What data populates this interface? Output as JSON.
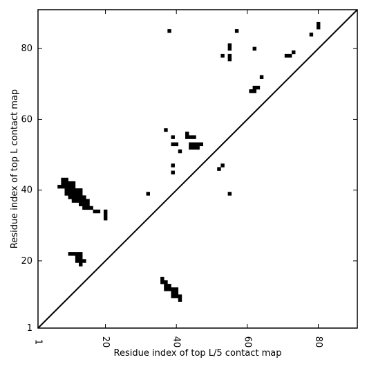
{
  "chart_data": {
    "type": "heatmap",
    "title": "",
    "xlabel": "Residue index of top L/5 contact map",
    "ylabel": "Residue index of top L contact map",
    "xlim": [
      1,
      91
    ],
    "ylim": [
      1,
      91
    ],
    "x_ticks": [
      1,
      20,
      40,
      60,
      80
    ],
    "y_ticks": [
      1,
      20,
      40,
      60,
      80
    ],
    "diagonal": {
      "from": [
        1,
        1
      ],
      "to": [
        91,
        91
      ]
    },
    "grid": false,
    "cell_color": "#000000",
    "cells": [
      [
        8,
        43
      ],
      [
        9,
        43
      ],
      [
        8,
        42
      ],
      [
        9,
        42
      ],
      [
        10,
        42
      ],
      [
        11,
        42
      ],
      [
        7,
        41
      ],
      [
        8,
        41
      ],
      [
        9,
        41
      ],
      [
        10,
        41
      ],
      [
        11,
        41
      ],
      [
        9,
        40
      ],
      [
        10,
        40
      ],
      [
        11,
        40
      ],
      [
        12,
        40
      ],
      [
        13,
        40
      ],
      [
        9,
        39
      ],
      [
        10,
        39
      ],
      [
        11,
        39
      ],
      [
        12,
        39
      ],
      [
        13,
        39
      ],
      [
        10,
        38
      ],
      [
        11,
        38
      ],
      [
        12,
        38
      ],
      [
        13,
        38
      ],
      [
        14,
        38
      ],
      [
        11,
        37
      ],
      [
        12,
        37
      ],
      [
        13,
        37
      ],
      [
        14,
        37
      ],
      [
        15,
        37
      ],
      [
        13,
        36
      ],
      [
        14,
        36
      ],
      [
        15,
        36
      ],
      [
        14,
        35
      ],
      [
        15,
        35
      ],
      [
        16,
        35
      ],
      [
        17,
        34
      ],
      [
        18,
        34
      ],
      [
        20,
        34
      ],
      [
        20,
        33
      ],
      [
        20,
        32
      ],
      [
        32,
        39
      ],
      [
        10,
        22
      ],
      [
        11,
        22
      ],
      [
        12,
        22
      ],
      [
        13,
        22
      ],
      [
        12,
        21
      ],
      [
        13,
        21
      ],
      [
        12,
        20
      ],
      [
        13,
        20
      ],
      [
        14,
        20
      ],
      [
        13,
        19
      ],
      [
        36,
        15
      ],
      [
        36,
        14
      ],
      [
        37,
        14
      ],
      [
        37,
        13
      ],
      [
        38,
        13
      ],
      [
        37,
        12
      ],
      [
        38,
        12
      ],
      [
        39,
        12
      ],
      [
        40,
        12
      ],
      [
        39,
        11
      ],
      [
        40,
        11
      ],
      [
        39,
        10
      ],
      [
        40,
        10
      ],
      [
        41,
        10
      ],
      [
        41,
        9
      ],
      [
        38,
        85
      ],
      [
        37,
        57
      ],
      [
        39,
        55
      ],
      [
        39,
        53
      ],
      [
        40,
        53
      ],
      [
        41,
        51
      ],
      [
        39,
        47
      ],
      [
        39,
        45
      ],
      [
        43,
        56
      ],
      [
        43,
        55
      ],
      [
        44,
        55
      ],
      [
        45,
        55
      ],
      [
        44,
        53
      ],
      [
        45,
        53
      ],
      [
        46,
        53
      ],
      [
        47,
        53
      ],
      [
        44,
        52
      ],
      [
        45,
        52
      ],
      [
        46,
        52
      ],
      [
        52,
        46
      ],
      [
        53,
        47
      ],
      [
        55,
        39
      ],
      [
        57,
        85
      ],
      [
        55,
        81
      ],
      [
        55,
        80
      ],
      [
        53,
        78
      ],
      [
        55,
        78
      ],
      [
        55,
        77
      ],
      [
        62,
        80
      ],
      [
        64,
        72
      ],
      [
        62,
        69
      ],
      [
        63,
        69
      ],
      [
        61,
        68
      ],
      [
        62,
        68
      ],
      [
        80,
        87
      ],
      [
        80,
        86
      ],
      [
        78,
        84
      ],
      [
        73,
        79
      ],
      [
        71,
        78
      ],
      [
        72,
        78
      ]
    ]
  }
}
